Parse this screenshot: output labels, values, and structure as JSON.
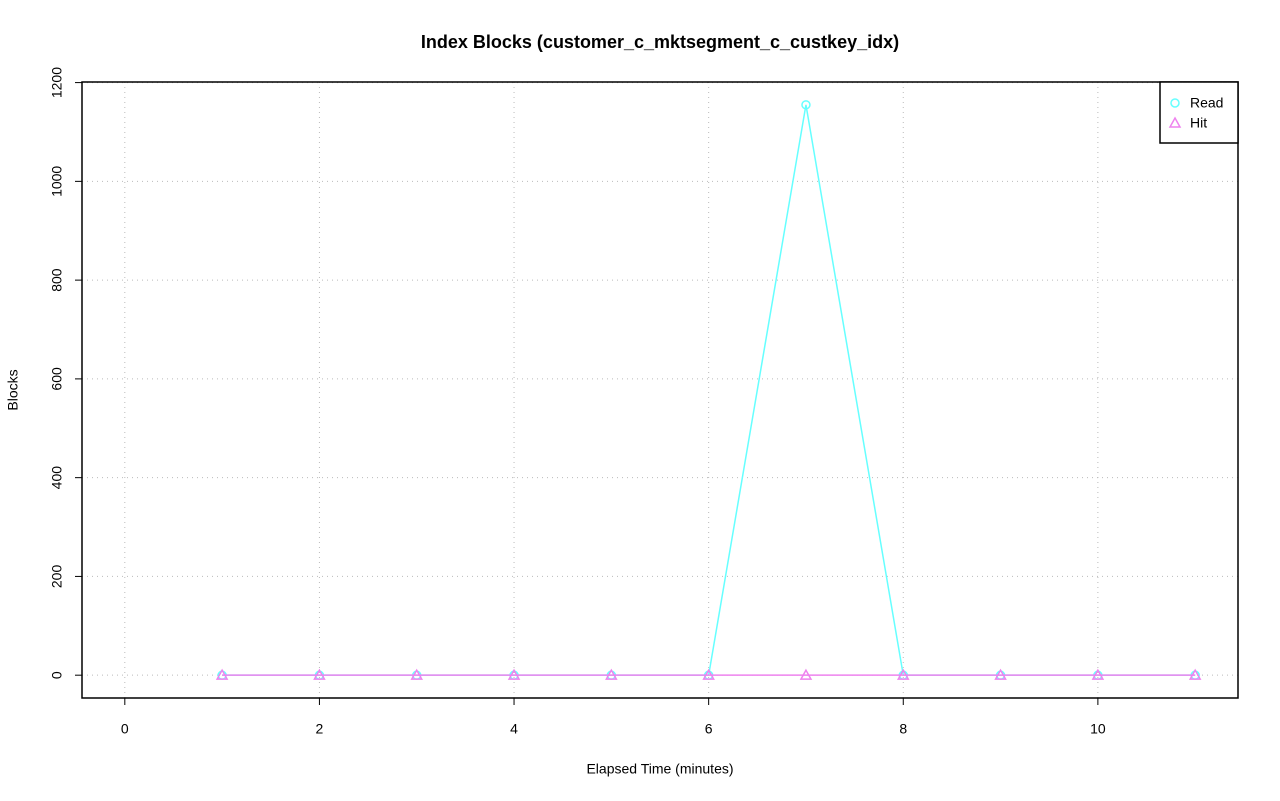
{
  "chart_data": {
    "type": "line",
    "title": "Index Blocks (customer_c_mktsegment_c_custkey_idx)",
    "x_label": "Elapsed Time (minutes)",
    "y_label": "Blocks",
    "x": [
      1,
      2,
      3,
      4,
      5,
      6,
      7,
      8,
      9,
      10,
      11
    ],
    "series": [
      {
        "name": "Read",
        "color": "#66ffff",
        "marker": "circle",
        "values": [
          0,
          0,
          0,
          0,
          0,
          0,
          1155,
          0,
          0,
          0,
          0
        ]
      },
      {
        "name": "Hit",
        "color": "#ee82ee",
        "marker": "triangle",
        "values": [
          0,
          0,
          0,
          0,
          0,
          0,
          0,
          0,
          0,
          0,
          0
        ]
      }
    ],
    "xlim": [
      -0.44,
      11.44
    ],
    "xticks": [
      0,
      2,
      4,
      6,
      8,
      10
    ],
    "ylim": [
      -46.2,
      1201.2
    ],
    "yticks": [
      0,
      200,
      400,
      600,
      800,
      1000,
      1200
    ],
    "grid": true,
    "legend": "top-right"
  }
}
